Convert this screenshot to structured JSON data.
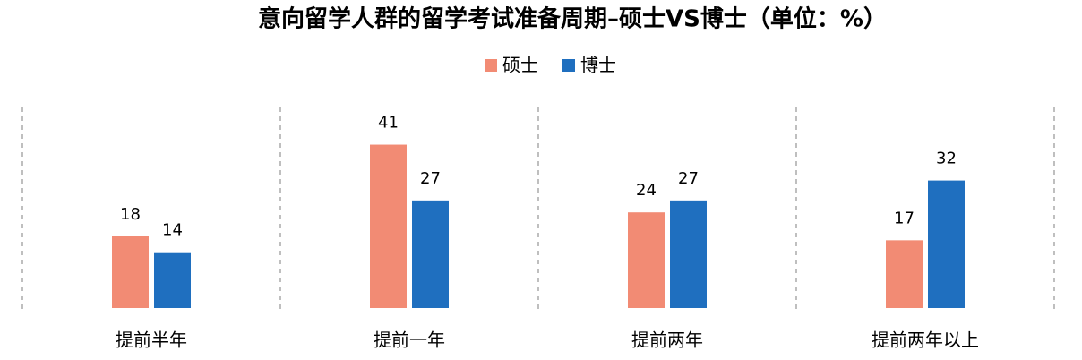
{
  "chart_data": {
    "type": "bar",
    "title": "意向留学人群的留学考试准备周期–硕士VS博士（单位：%）",
    "categories": [
      "提前半年",
      "提前一年",
      "提前两年",
      "提前两年以上"
    ],
    "series": [
      {
        "name": "硕士",
        "color": "#f28b74",
        "values": [
          18,
          41,
          24,
          17
        ]
      },
      {
        "name": "博士",
        "color": "#1f6fbf",
        "values": [
          14,
          27,
          27,
          32
        ]
      }
    ]
  }
}
